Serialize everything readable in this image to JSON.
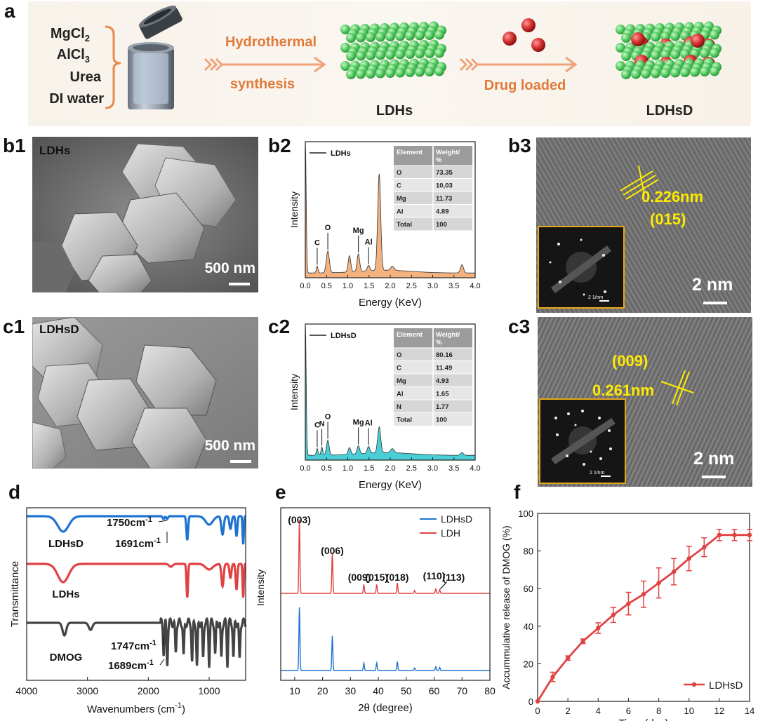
{
  "panels": {
    "a": "a",
    "b1": "b1",
    "b2": "b2",
    "b3": "b3",
    "c1": "c1",
    "c2": "c2",
    "c3": "c3",
    "d": "d",
    "e": "e",
    "f": "f"
  },
  "scheme": {
    "reagents": [
      "MgCl",
      "AlCl",
      "Urea",
      "DI water"
    ],
    "reagent_subs": [
      "2",
      "3",
      "",
      ""
    ],
    "step1_line1": "Hydrothermal",
    "step1_line2": "synthesis",
    "product1": "LDHs",
    "step2": "Drug loaded",
    "product2": "LDHsD",
    "colors": {
      "arrow": "#f0a27a",
      "text": "#e07a3a",
      "sphere_green": "#5fd16b",
      "sphere_red": "#c62828"
    }
  },
  "sem_b1": {
    "label": "LDHs",
    "scale": "500 nm"
  },
  "sem_c1": {
    "label": "LDHsD",
    "scale": "500 nm"
  },
  "tem_b3": {
    "d_spacing": "0.226nm",
    "plane": "(015)",
    "scale": "2 nm",
    "inset_scale": "2 1/nm"
  },
  "tem_c3": {
    "d_spacing": "0.261nm",
    "plane": "(009)",
    "scale": "2 nm",
    "inset_scale": "2 1/nm"
  },
  "chart_data": [
    {
      "id": "b2",
      "type": "line",
      "xlabel": "Energy (KeV)",
      "ylabel": "Intensity",
      "xlim": [
        0.0,
        4.0
      ],
      "xticks": [
        "0.0",
        "0.5",
        "1.0",
        "1.5",
        "2.0",
        "2.5",
        "3.0",
        "3.5",
        "4.0"
      ],
      "legend": "LDHs",
      "fill_color": "#f2a56a",
      "peaks": [
        {
          "label": "C",
          "x": 0.28
        },
        {
          "label": "O",
          "x": 0.53
        },
        {
          "label": "Mg",
          "x": 1.25
        },
        {
          "label": "Al",
          "x": 1.49
        }
      ],
      "table": {
        "headers": [
          "Element",
          "Weight/\n%"
        ],
        "rows": [
          [
            "O",
            "73.35"
          ],
          [
            "C",
            "10,03"
          ],
          [
            "Mg",
            "11.73"
          ],
          [
            "Al",
            "4.89"
          ],
          [
            "Total",
            "100"
          ]
        ]
      }
    },
    {
      "id": "c2",
      "type": "line",
      "xlabel": "Energy (KeV)",
      "ylabel": "Intensity",
      "xlim": [
        0.0,
        4.0
      ],
      "xticks": [
        "0.0",
        "0.5",
        "1.0",
        "1.5",
        "2.0",
        "2.5",
        "3.0",
        "3.5",
        "4.0"
      ],
      "legend": "LDHsD",
      "fill_color": "#29c6cf",
      "peaks": [
        {
          "label": "C",
          "x": 0.28
        },
        {
          "label": "N",
          "x": 0.39
        },
        {
          "label": "O",
          "x": 0.53
        },
        {
          "label": "Mg",
          "x": 1.25
        },
        {
          "label": "Al",
          "x": 1.49
        }
      ],
      "table": {
        "headers": [
          "Element",
          "Weight/\n%"
        ],
        "rows": [
          [
            "O",
            "80.16"
          ],
          [
            "C",
            "11.49"
          ],
          [
            "Mg",
            "4.93"
          ],
          [
            "Al",
            "1.65"
          ],
          [
            "N",
            "1.77"
          ],
          [
            "Total",
            "100"
          ]
        ]
      }
    },
    {
      "id": "d",
      "type": "line",
      "xlabel": "Wavenumbers (cm",
      "xlabel_sup": "-1",
      "xlabel_end": ")",
      "ylabel": "Transmittance",
      "xlim": [
        4000,
        400
      ],
      "xticks": [
        4000,
        3000,
        2000,
        1000
      ],
      "series": [
        {
          "name": "LDHsD",
          "color": "#1f73d1"
        },
        {
          "name": "LDHs",
          "color": "#e04242"
        },
        {
          "name": "DMOG",
          "color": "#444444"
        }
      ],
      "annotations": [
        {
          "text": "1750cm",
          "sup": "-1"
        },
        {
          "text": "1691cm",
          "sup": "-1"
        },
        {
          "text": "1747cm",
          "sup": "-1"
        },
        {
          "text": "1689cm",
          "sup": "-1"
        }
      ]
    },
    {
      "id": "e",
      "type": "line",
      "xlabel": "2θ (degree)",
      "ylabel": "Intensity",
      "xlim": [
        5,
        80
      ],
      "xticks": [
        10,
        20,
        30,
        40,
        50,
        60,
        70,
        80
      ],
      "series": [
        {
          "name": "LDHsD",
          "color": "#1f73d1"
        },
        {
          "name": "LDH",
          "color": "#e04242"
        }
      ],
      "peaks": [
        {
          "label": "(003)",
          "x": 11.7
        },
        {
          "label": "(006)",
          "x": 23.5
        },
        {
          "label": "(009)",
          "x": 34.8
        },
        {
          "label": "(015)",
          "x": 39.4
        },
        {
          "label": "(018)",
          "x": 46.8
        },
        {
          "label": "(110)",
          "x": 60.6
        },
        {
          "label": "(113)",
          "x": 62.0
        }
      ]
    },
    {
      "id": "f",
      "type": "line",
      "xlabel": "Time (day)",
      "ylabel": "Accummulative release of DMOG (%)",
      "xlim": [
        0,
        14
      ],
      "ylim": [
        0,
        100
      ],
      "xticks": [
        0,
        2,
        4,
        6,
        8,
        10,
        12,
        14
      ],
      "yticks": [
        0,
        20,
        40,
        60,
        80,
        100
      ],
      "legend": "top-bottom-right",
      "series": [
        {
          "name": "LDHsD",
          "color": "#e04242",
          "x": [
            0,
            1,
            2,
            3,
            4,
            5,
            6,
            7,
            8,
            9,
            10,
            11,
            12,
            13,
            14
          ],
          "y": [
            0,
            13,
            23,
            32,
            39,
            46,
            52,
            57,
            63,
            69,
            76,
            82,
            88.5,
            88.5,
            88.5
          ],
          "err": [
            0,
            2.5,
            1.2,
            1.2,
            2.8,
            4,
            6,
            7,
            8,
            7,
            6.5,
            5,
            3,
            3,
            3
          ]
        }
      ]
    }
  ]
}
